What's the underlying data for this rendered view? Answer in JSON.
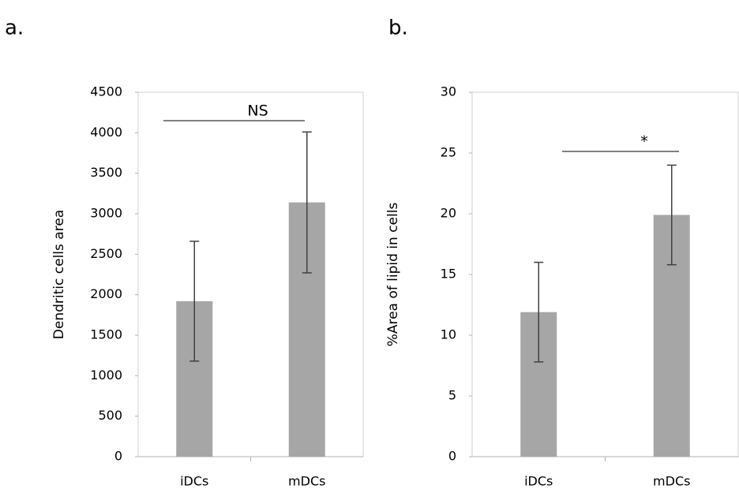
{
  "chart_data": [
    {
      "type": "bar",
      "panel_label": "a.",
      "ylabel": "Dendritic cells area",
      "categories": [
        "iDCs",
        "mDCs"
      ],
      "values": [
        1920,
        3140
      ],
      "errors": [
        740,
        870
      ],
      "color": "#a6a6a6",
      "ylim": [
        0,
        4500
      ],
      "yticks": [
        0,
        500,
        1000,
        1500,
        2000,
        2500,
        3000,
        3500,
        4000,
        4500
      ],
      "annotation": "NS"
    },
    {
      "type": "bar",
      "panel_label": "b.",
      "ylabel": "%Area of lipid in cells",
      "categories": [
        "iDCs",
        "mDCs"
      ],
      "values": [
        11.9,
        19.9
      ],
      "errors": [
        4.1,
        4.1
      ],
      "color": "#a6a6a6",
      "ylim": [
        0,
        30
      ],
      "yticks": [
        0,
        5,
        10,
        15,
        20,
        25,
        30
      ],
      "annotation": "*"
    }
  ]
}
